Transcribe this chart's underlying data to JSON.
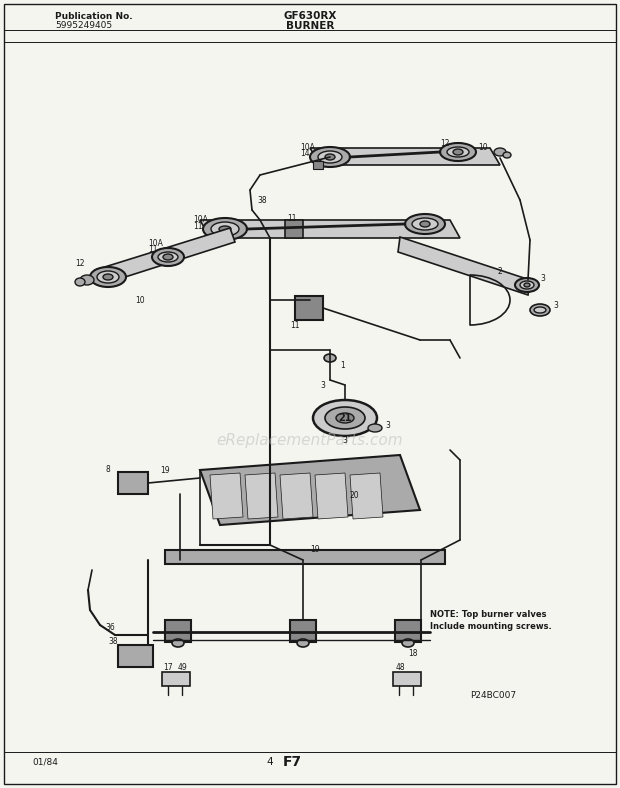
{
  "title_center": "GF630RX",
  "subtitle_center": "BURNER",
  "pub_no_label": "Publication No.",
  "pub_no_value": "5995249405",
  "footer_left": "01/84",
  "footer_center": "4",
  "footer_page": "F7",
  "note_text": "NOTE: Top burner valves\nInclude mounting screws.",
  "part_code": "P24BC007",
  "watermark": "eReplacementParts.com",
  "bg_color": "#f5f5f0",
  "line_color": "#1a1a1a",
  "gray1": "#888888",
  "gray2": "#aaaaaa",
  "gray3": "#cccccc",
  "gray4": "#444444"
}
